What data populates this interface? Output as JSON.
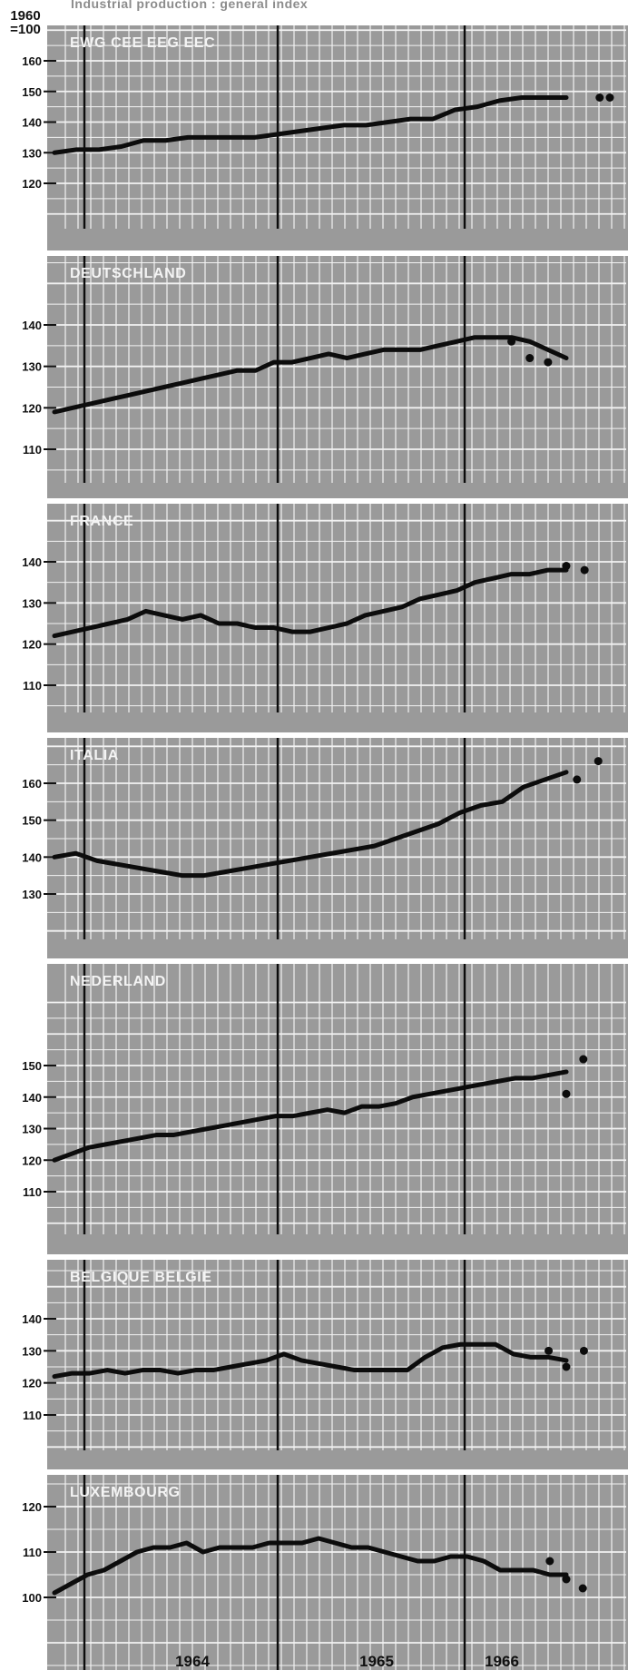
{
  "header": {
    "title": "Industrial production : general index",
    "base_line1": "1960",
    "base_line2": "=100"
  },
  "colors": {
    "panel": "#9a9a9a",
    "grid": "#f2f2f2",
    "line": "#0c0c0c",
    "text_dark": "#111111",
    "label_light": "#f4f4f4"
  },
  "chart_data": [
    {
      "type": "line",
      "name": "EWG CEE EEG EEC",
      "x_axis": {
        "ticks": [
          "1964",
          "1965",
          "1966"
        ]
      },
      "yticks": [
        120,
        130,
        140,
        150,
        160
      ],
      "series": [
        {
          "values": [
            130,
            131,
            131,
            132,
            134,
            134,
            135,
            135,
            135,
            135,
            136,
            137,
            138,
            139,
            139,
            140,
            141,
            141,
            144,
            145,
            147,
            148,
            148,
            148
          ]
        }
      ],
      "points": [
        {
          "x": 24.5,
          "y": 148
        },
        {
          "x": 26,
          "y": 148
        }
      ]
    },
    {
      "type": "line",
      "name": "DEUTSCHLAND",
      "x_axis": {
        "ticks": [
          "1964",
          "1965",
          "1966"
        ]
      },
      "yticks": [
        110,
        120,
        130,
        140
      ],
      "series": [
        {
          "values": [
            119,
            120,
            121,
            122,
            123,
            124,
            125,
            126,
            127,
            128,
            129,
            129,
            131,
            131,
            132,
            133,
            132,
            133,
            134,
            134,
            134,
            135,
            136,
            137,
            137,
            137,
            136,
            134,
            132
          ]
        }
      ],
      "points": [
        {
          "x": 25,
          "y": 136
        },
        {
          "x": 26,
          "y": 132
        },
        {
          "x": 27,
          "y": 131
        }
      ]
    },
    {
      "type": "line",
      "name": "FRANCE",
      "x_axis": {
        "ticks": [
          "1964",
          "1965",
          "1966"
        ]
      },
      "yticks": [
        110,
        120,
        130,
        140
      ],
      "series": [
        {
          "values": [
            122,
            123,
            124,
            125,
            126,
            128,
            127,
            126,
            127,
            125,
            125,
            124,
            124,
            123,
            123,
            124,
            125,
            127,
            128,
            129,
            131,
            132,
            133,
            135,
            136,
            137,
            137,
            138,
            138
          ]
        }
      ],
      "points": [
        {
          "x": 28,
          "y": 139
        },
        {
          "x": 29,
          "y": 138
        }
      ]
    },
    {
      "type": "line",
      "name": "ITALIA",
      "x_axis": {
        "ticks": [
          "1964",
          "1965",
          "1966"
        ]
      },
      "yticks": [
        130,
        140,
        150,
        160
      ],
      "series": [
        {
          "values": [
            140,
            141,
            139,
            138,
            137,
            136,
            135,
            135,
            136,
            137,
            138,
            139,
            140,
            141,
            142,
            143,
            145,
            147,
            149,
            152,
            154,
            155,
            159,
            161,
            163
          ]
        }
      ],
      "points": [
        {
          "x": 24.5,
          "y": 161
        },
        {
          "x": 25.5,
          "y": 166
        }
      ]
    },
    {
      "type": "line",
      "name": "NEDERLAND",
      "x_axis": {
        "ticks": [
          "1964",
          "1965",
          "1966"
        ]
      },
      "yticks": [
        110,
        120,
        130,
        140,
        150
      ],
      "series": [
        {
          "values": [
            120,
            122,
            124,
            125,
            126,
            127,
            128,
            128,
            129,
            130,
            131,
            132,
            133,
            134,
            134,
            135,
            136,
            135,
            137,
            137,
            138,
            140,
            141,
            142,
            143,
            144,
            145,
            146,
            146,
            147,
            148
          ]
        }
      ],
      "points": [
        {
          "x": 30,
          "y": 141
        },
        {
          "x": 31,
          "y": 152
        }
      ]
    },
    {
      "type": "line",
      "name": "BELGIQUE BELGIE",
      "x_axis": {
        "ticks": [
          "1964",
          "1965",
          "1966"
        ]
      },
      "yticks": [
        110,
        120,
        130,
        140
      ],
      "series": [
        {
          "values": [
            122,
            123,
            123,
            124,
            123,
            124,
            124,
            123,
            124,
            124,
            125,
            126,
            127,
            129,
            127,
            126,
            125,
            124,
            124,
            124,
            124,
            128,
            131,
            132,
            132,
            132,
            129,
            128,
            128,
            127
          ]
        }
      ],
      "points": [
        {
          "x": 28,
          "y": 130
        },
        {
          "x": 29,
          "y": 125
        },
        {
          "x": 30,
          "y": 130
        }
      ]
    },
    {
      "type": "line",
      "name": "LUXEMBOURG",
      "x_axis": {
        "ticks": [
          "1964",
          "1965",
          "1966"
        ]
      },
      "yticks": [
        100,
        110,
        120
      ],
      "series": [
        {
          "values": [
            101,
            103,
            105,
            106,
            108,
            110,
            111,
            111,
            112,
            110,
            111,
            111,
            111,
            112,
            112,
            112,
            113,
            112,
            111,
            111,
            110,
            109,
            108,
            108,
            109,
            109,
            108,
            106,
            106,
            106,
            105,
            105
          ]
        }
      ],
      "points": [
        {
          "x": 30,
          "y": 108
        },
        {
          "x": 31,
          "y": 104
        },
        {
          "x": 32,
          "y": 102
        }
      ]
    }
  ]
}
